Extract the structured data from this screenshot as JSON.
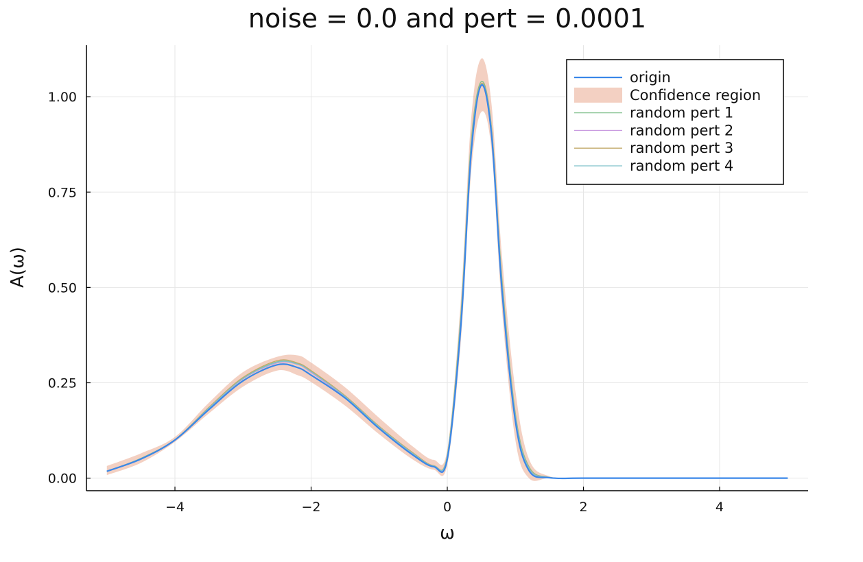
{
  "chart_data": {
    "type": "line",
    "title": "noise = 0.0 and pert = 0.0001",
    "xlabel": "ω",
    "ylabel": "A(ω)",
    "xlim": [
      -5.3,
      5.3
    ],
    "ylim": [
      -0.033,
      1.135
    ],
    "xticks": [
      -4,
      -2,
      0,
      2,
      4
    ],
    "xtick_labels": [
      "−4",
      "−2",
      "0",
      "2",
      "4"
    ],
    "yticks": [
      0.0,
      0.25,
      0.5,
      0.75,
      1.0
    ],
    "ytick_labels": [
      "0.00",
      "0.25",
      "0.50",
      "0.75",
      "1.00"
    ],
    "grid": true,
    "legend_position": "top-right",
    "legend": [
      "origin",
      "Confidence region",
      "random pert 1",
      "random pert 2",
      "random pert 3",
      "random pert 4"
    ],
    "x": [
      -5.0,
      -4.5,
      -4.0,
      -3.5,
      -3.0,
      -2.5,
      -2.2,
      -2.0,
      -1.5,
      -1.0,
      -0.5,
      -0.2,
      0.0,
      0.2,
      0.35,
      0.5,
      0.65,
      0.8,
      1.0,
      1.2,
      1.5,
      2.0,
      3.0,
      4.0,
      5.0
    ],
    "series": [
      {
        "name": "origin",
        "color": "#3a87e8",
        "width": 2.2,
        "values": [
          0.018,
          0.05,
          0.1,
          0.18,
          0.255,
          0.297,
          0.29,
          0.27,
          0.21,
          0.13,
          0.06,
          0.03,
          0.05,
          0.4,
          0.85,
          1.03,
          0.9,
          0.5,
          0.15,
          0.02,
          0.001,
          0.0,
          0.0,
          0.0,
          0.0
        ]
      },
      {
        "name": "random pert 1",
        "color": "#7fbf8a",
        "width": 1.3,
        "values": [
          0.018,
          0.052,
          0.101,
          0.185,
          0.262,
          0.305,
          0.3,
          0.28,
          0.215,
          0.135,
          0.065,
          0.032,
          0.06,
          0.43,
          0.88,
          1.04,
          0.92,
          0.53,
          0.17,
          0.03,
          0.002,
          0.0,
          0.0,
          0.0,
          0.0
        ]
      },
      {
        "name": "random pert 2",
        "color": "#c99be0",
        "width": 1.3,
        "values": [
          0.017,
          0.05,
          0.099,
          0.183,
          0.26,
          0.302,
          0.298,
          0.277,
          0.212,
          0.132,
          0.062,
          0.031,
          0.055,
          0.41,
          0.86,
          1.03,
          0.91,
          0.51,
          0.16,
          0.025,
          0.002,
          0.0,
          0.0,
          0.0,
          0.0
        ]
      },
      {
        "name": "random pert 3",
        "color": "#c2a86a",
        "width": 1.3,
        "values": [
          0.018,
          0.051,
          0.1,
          0.186,
          0.264,
          0.308,
          0.302,
          0.282,
          0.216,
          0.136,
          0.066,
          0.033,
          0.058,
          0.42,
          0.87,
          1.035,
          0.915,
          0.52,
          0.165,
          0.028,
          0.002,
          0.0,
          0.0,
          0.0,
          0.0
        ]
      },
      {
        "name": "random pert 4",
        "color": "#7fc2c9",
        "width": 1.3,
        "values": [
          0.017,
          0.051,
          0.1,
          0.184,
          0.261,
          0.304,
          0.299,
          0.279,
          0.214,
          0.134,
          0.064,
          0.032,
          0.057,
          0.415,
          0.865,
          1.032,
          0.912,
          0.515,
          0.162,
          0.026,
          0.002,
          0.0,
          0.0,
          0.0,
          0.0
        ]
      }
    ],
    "confidence_region": {
      "name": "Confidence region",
      "color": "#e9a98f",
      "opacity": 0.55,
      "lower": [
        0.008,
        0.04,
        0.095,
        0.17,
        0.24,
        0.282,
        0.27,
        0.252,
        0.19,
        0.115,
        0.048,
        0.022,
        0.035,
        0.36,
        0.8,
        0.96,
        0.86,
        0.45,
        0.1,
        0.0,
        0.0,
        0.0,
        0.0,
        0.0,
        0.0
      ],
      "upper": [
        0.032,
        0.065,
        0.108,
        0.198,
        0.278,
        0.318,
        0.322,
        0.303,
        0.238,
        0.158,
        0.082,
        0.048,
        0.075,
        0.47,
        0.94,
        1.1,
        0.98,
        0.59,
        0.23,
        0.05,
        0.005,
        0.0,
        0.0,
        0.0,
        0.0
      ]
    }
  }
}
